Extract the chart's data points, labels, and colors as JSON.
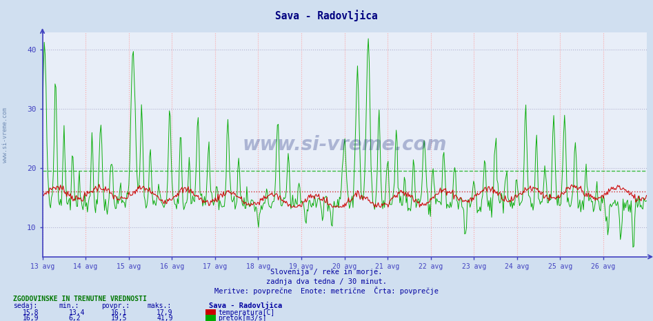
{
  "title": "Sava - Radovljica",
  "background_color": "#d0dff0",
  "plot_bg_color": "#e8eef8",
  "axis_color": "#4040c0",
  "title_color": "#000080",
  "text_color": "#0000a0",
  "watermark": "www.si-vreme.com",
  "subtitle1": "Slovenija / reke in morje.",
  "subtitle2": "zadnja dva tedna / 30 minut.",
  "subtitle3": "Meritve: povprečne  Enote: metrične  Črta: povprečje",
  "x_labels": [
    "13 avg",
    "14 avg",
    "15 avg",
    "16 avg",
    "17 avg",
    "18 avg",
    "19 avg",
    "20 avg",
    "21 avg",
    "22 avg",
    "23 avg",
    "24 avg",
    "25 avg",
    "26 avg"
  ],
  "ylim": [
    5,
    43
  ],
  "yticks": [
    10,
    20,
    30,
    40
  ],
  "n_points": 672,
  "temp_avg": 16.1,
  "temp_min": 13.4,
  "temp_max": 17.9,
  "temp_sedaj": 15.8,
  "flow_avg": 19.5,
  "flow_min": 6.2,
  "flow_max": 41.9,
  "flow_sedaj": 16.9,
  "temp_color": "#cc0000",
  "flow_color": "#00aa00",
  "legend_title": "Sava - Radovljica",
  "info_title": "ZGODOVINSKE IN TRENUTNE VREDNOSTI",
  "col_sedaj": "sedaj:",
  "col_min": "min.:",
  "col_povpr": "povpr.:",
  "col_maks": "maks.:"
}
